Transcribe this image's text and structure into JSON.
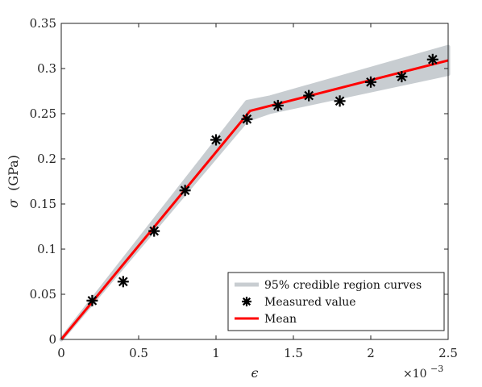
{
  "chart_data": {
    "type": "line",
    "xlabel": "ϵ",
    "ylabel_symbol": "σ",
    "ylabel_unit": "(GPa)",
    "x_exponent_label": "×10",
    "x_exponent_power": "−3",
    "xlim": [
      0,
      2.5
    ],
    "ylim": [
      0,
      0.35
    ],
    "x_ticks": [
      0,
      0.5,
      1,
      1.5,
      2,
      2.5
    ],
    "x_tick_labels": [
      "0",
      "0.5",
      "1",
      "1.5",
      "2",
      "2.5"
    ],
    "y_ticks": [
      0,
      0.05,
      0.1,
      0.15,
      0.2,
      0.25,
      0.3,
      0.35
    ],
    "y_tick_labels": [
      "0",
      "0.05",
      "0.1",
      "0.15",
      "0.2",
      "0.25",
      "0.3",
      "0.35"
    ],
    "grid": false,
    "legend_position": "bottom-right",
    "series": [
      {
        "name": "95% credible region curves",
        "type": "band",
        "color": "#c8cdd1",
        "x": [
          0,
          1.2,
          1.35,
          2.5
        ],
        "lower": [
          0,
          0.243,
          0.252,
          0.294
        ],
        "upper": [
          0,
          0.263,
          0.268,
          0.324
        ]
      },
      {
        "name": "Measured value",
        "type": "scatter",
        "marker": "asterisk",
        "color": "#000000",
        "x": [
          0.2,
          0.4,
          0.6,
          0.8,
          1.0,
          1.2,
          1.4,
          1.6,
          1.8,
          2.0,
          2.2,
          2.4
        ],
        "y": [
          0.043,
          0.064,
          0.12,
          0.165,
          0.221,
          0.244,
          0.259,
          0.27,
          0.264,
          0.285,
          0.291,
          0.31
        ]
      },
      {
        "name": "Mean",
        "type": "line",
        "color": "#ff0000",
        "x": [
          0,
          1.22,
          2.5
        ],
        "y": [
          0,
          0.253,
          0.309
        ]
      }
    ]
  }
}
